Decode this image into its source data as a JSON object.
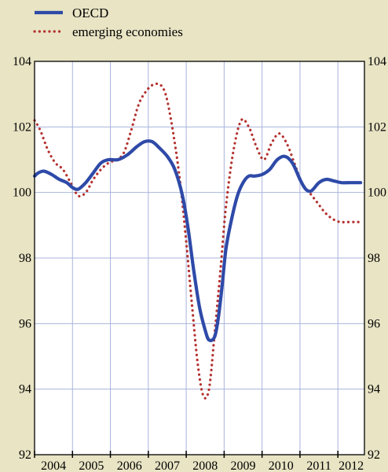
{
  "chart_data": {
    "type": "line",
    "legend_position": "top-left",
    "grid": true,
    "ylim": [
      92,
      104
    ],
    "xlim": [
      2004.0,
      2012.7
    ],
    "y_ticks_left": [
      "92",
      "94",
      "96",
      "98",
      "100",
      "102",
      "104"
    ],
    "y_ticks_right": [
      "92",
      "94",
      "96",
      "98",
      "100",
      "102",
      "104"
    ],
    "x_tick_labels": [
      "2004",
      "2005",
      "2006",
      "2007",
      "2008",
      "2009",
      "2010",
      "2011",
      "2012"
    ],
    "series": [
      {
        "name": "OECD",
        "color": "#2e4aa8",
        "style": "solid",
        "x": [
          2004.0,
          2004.1,
          2004.25,
          2004.45,
          2004.65,
          2004.85,
          2005.0,
          2005.15,
          2005.35,
          2005.55,
          2005.75,
          2005.95,
          2006.2,
          2006.45,
          2006.7,
          2006.9,
          2007.1,
          2007.3,
          2007.5,
          2007.7,
          2007.9,
          2008.05,
          2008.2,
          2008.35,
          2008.5,
          2008.6,
          2008.75,
          2008.85,
          2008.95,
          2009.05,
          2009.2,
          2009.35,
          2009.5,
          2009.65,
          2009.8,
          2010.0,
          2010.2,
          2010.4,
          2010.6,
          2010.8,
          2011.0,
          2011.15,
          2011.3,
          2011.5,
          2011.7,
          2011.9,
          2012.1,
          2012.3,
          2012.45,
          2012.6
        ],
        "y": [
          100.5,
          100.6,
          100.65,
          100.55,
          100.4,
          100.3,
          100.15,
          100.1,
          100.3,
          100.6,
          100.9,
          101.0,
          101.0,
          101.15,
          101.4,
          101.55,
          101.55,
          101.35,
          101.1,
          100.7,
          99.9,
          98.9,
          97.6,
          96.5,
          95.8,
          95.5,
          95.6,
          96.2,
          97.2,
          98.3,
          99.2,
          99.9,
          100.3,
          100.5,
          100.5,
          100.55,
          100.7,
          101.0,
          101.1,
          100.9,
          100.4,
          100.1,
          100.05,
          100.3,
          100.4,
          100.35,
          100.3,
          100.3,
          100.3,
          100.3
        ]
      },
      {
        "name": "emerging economies",
        "color": "#b3312e",
        "style": "dotted",
        "x": [
          2004.0,
          2004.15,
          2004.35,
          2004.55,
          2004.75,
          2004.95,
          2005.15,
          2005.35,
          2005.55,
          2005.75,
          2005.95,
          2006.15,
          2006.35,
          2006.55,
          2006.75,
          2006.95,
          2007.15,
          2007.35,
          2007.5,
          2007.7,
          2007.85,
          2008.0,
          2008.15,
          2008.3,
          2008.45,
          2008.6,
          2008.75,
          2008.9,
          2009.05,
          2009.25,
          2009.45,
          2009.65,
          2009.85,
          2010.05,
          2010.25,
          2010.45,
          2010.65,
          2010.85,
          2011.05,
          2011.25,
          2011.45,
          2011.65,
          2011.85,
          2012.05,
          2012.25,
          2012.45,
          2012.6
        ],
        "y": [
          102.2,
          101.9,
          101.3,
          100.9,
          100.7,
          100.3,
          99.9,
          100.0,
          100.4,
          100.7,
          100.9,
          101.0,
          101.2,
          101.9,
          102.7,
          103.1,
          103.3,
          103.25,
          102.8,
          101.5,
          100.2,
          98.5,
          96.6,
          94.8,
          93.8,
          94.0,
          95.7,
          97.6,
          99.6,
          101.3,
          102.2,
          102.0,
          101.4,
          101.0,
          101.5,
          101.8,
          101.5,
          100.9,
          100.3,
          100.0,
          99.7,
          99.4,
          99.2,
          99.1,
          99.1,
          99.1,
          99.1
        ]
      }
    ]
  }
}
